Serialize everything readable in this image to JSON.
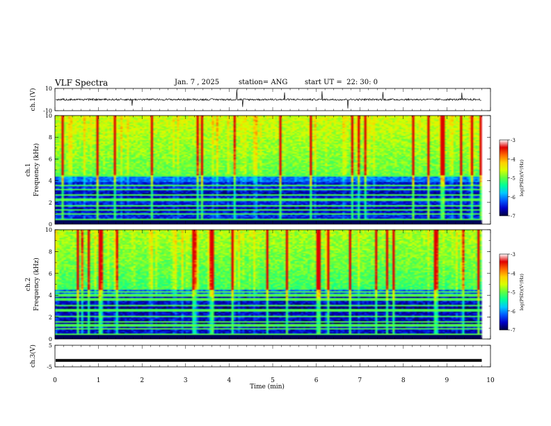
{
  "header": {
    "title": "VLF Spectra",
    "date": "Jan. 7 , 2025",
    "station": "station= ANG",
    "start": "start UT =  22: 30: 0"
  },
  "chart_data": [
    {
      "type": "line",
      "panel": "ch1-waveform",
      "ylabel": "ch.1(V)",
      "ylim": [
        -10,
        10
      ],
      "yticks": [
        "10",
        "-10"
      ],
      "xlim": [
        0,
        10
      ],
      "baseline": 0,
      "notes": "continuous waveform with sporadic impulsive spikes"
    },
    {
      "type": "heatmap",
      "panel": "ch1-spectrogram",
      "ylabel": "ch.1\nFrequency (kHz)",
      "ylim": [
        0,
        10
      ],
      "yticks": [
        "0",
        "2",
        "4",
        "6",
        "8",
        "10"
      ],
      "xlim": [
        0,
        10
      ],
      "data_end_min": 9.8,
      "colorbar": {
        "label": "log(PSD)(V²/Hz)",
        "range": [
          -7,
          -3
        ],
        "ticks": [
          "-3",
          "-4",
          "-5",
          "-6",
          "-7"
        ]
      },
      "narrowband_lines_khz": [
        0.35,
        0.9,
        1.3,
        1.6,
        2.2,
        2.7,
        3.2,
        3.55,
        4.4,
        4.8
      ]
    },
    {
      "type": "heatmap",
      "panel": "ch2-spectrogram",
      "ylabel": "ch.2\nFrequency (kHz)",
      "ylim": [
        0,
        10
      ],
      "yticks": [
        "0",
        "2",
        "4",
        "6",
        "8",
        "10"
      ],
      "xlim": [
        0,
        10
      ],
      "data_end_min": 9.8,
      "colorbar": {
        "label": "log(PSD)(V²/Hz)",
        "range": [
          -7,
          -3
        ],
        "ticks": [
          "-3",
          "-4",
          "-5",
          "-6",
          "-7"
        ]
      },
      "narrowband_lines_khz": [
        0.35,
        0.9,
        1.2,
        1.5,
        2.0,
        2.6,
        3.0,
        3.6,
        4.0,
        4.3
      ]
    },
    {
      "type": "line",
      "panel": "ch3-waveform",
      "ylabel": "ch.3(V)",
      "ylim": [
        -5,
        5
      ],
      "yticks": [
        "5",
        "-5"
      ],
      "xlim": [
        0,
        10
      ],
      "baseline": -2,
      "notes": "flat thick line"
    }
  ],
  "xaxis": {
    "label": "Time (min)",
    "ticks": [
      "0",
      "1",
      "2",
      "3",
      "4",
      "5",
      "6",
      "7",
      "8",
      "9",
      "10"
    ]
  },
  "colors": {
    "scale": [
      "#000040",
      "#0000c8",
      "#0058ff",
      "#00c8ff",
      "#00ff9a",
      "#60ff40",
      "#d8ff00",
      "#ffd000",
      "#ff6a00",
      "#e00000",
      "#ffffff"
    ]
  }
}
